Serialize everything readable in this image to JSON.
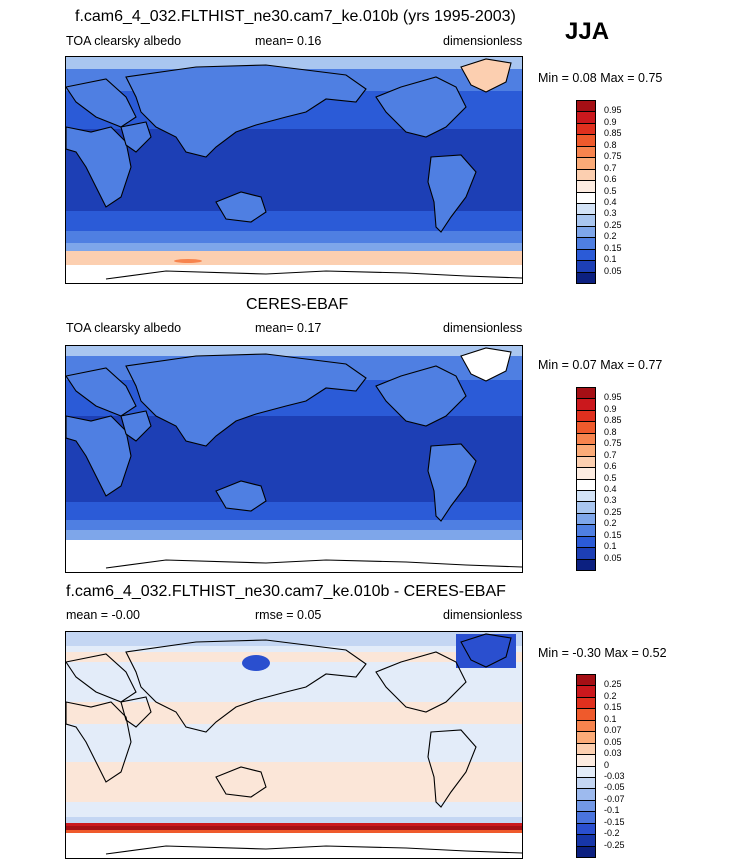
{
  "season": "JJA",
  "panels": [
    {
      "id": "model",
      "title": "f.cam6_4_032.FLTHIST_ne30.cam7_ke.010b (yrs 1995-2003)",
      "left_label": "TOA clearsky albedo",
      "mid_label": "mean=   0.16",
      "right_label": "dimensionless",
      "minmax": "Min =   0.08  Max =   0.75",
      "colorbar_labels": [
        "0.95",
        "0.9",
        "0.85",
        "0.8",
        "0.75",
        "0.7",
        "0.6",
        "0.5",
        "0.4",
        "0.3",
        "0.25",
        "0.2",
        "0.15",
        "0.1",
        "0.05"
      ],
      "colorbar_colors": [
        "#a50f15",
        "#cb181d",
        "#e0301e",
        "#ef5a2c",
        "#f7844e",
        "#fbab78",
        "#fccfb0",
        "#fdece1",
        "#ffffff",
        "#d3e3f7",
        "#a9c6f0",
        "#7ea6ea",
        "#4f7fe2",
        "#2b5bd7",
        "#1d3fb5",
        "#0c2080"
      ],
      "ocean_color": "#1e4fd0"
    },
    {
      "id": "obs",
      "title": "CERES-EBAF",
      "left_label": "TOA clearsky albedo",
      "mid_label": "mean=   0.17",
      "right_label": "dimensionless",
      "minmax": "Min =   0.07  Max =   0.77",
      "colorbar_labels": [
        "0.95",
        "0.9",
        "0.85",
        "0.8",
        "0.75",
        "0.7",
        "0.6",
        "0.5",
        "0.4",
        "0.3",
        "0.25",
        "0.2",
        "0.15",
        "0.1",
        "0.05"
      ],
      "colorbar_colors": [
        "#a50f15",
        "#cb181d",
        "#e0301e",
        "#ef5a2c",
        "#f7844e",
        "#fbab78",
        "#fccfb0",
        "#fdece1",
        "#ffffff",
        "#d3e3f7",
        "#a9c6f0",
        "#7ea6ea",
        "#4f7fe2",
        "#2b5bd7",
        "#1d3fb5",
        "#0c2080"
      ],
      "ocean_color": "#1e4fd0"
    },
    {
      "id": "diff",
      "title": "f.cam6_4_032.FLTHIST_ne30.cam7_ke.010b - CERES-EBAF",
      "left_label": "mean = -0.00",
      "mid_label": "rmse =  0.05",
      "right_label": "dimensionless",
      "minmax": "Min =  -0.30  Max =   0.52",
      "colorbar_labels": [
        "0.25",
        "0.2",
        "0.15",
        "0.1",
        "0.07",
        "0.05",
        "0.03",
        "0",
        "-0.03",
        "-0.05",
        "-0.07",
        "-0.1",
        "-0.15",
        "-0.2",
        "-0.25"
      ],
      "colorbar_colors": [
        "#a50f15",
        "#cb181d",
        "#e0301e",
        "#ef5a2c",
        "#f7844e",
        "#fbab78",
        "#fccfb0",
        "#fdece1",
        "#e3ecf9",
        "#c4d6f3",
        "#9dbaee",
        "#7298e6",
        "#4a74dd",
        "#2a4fcf",
        "#1736a8",
        "#0c2080"
      ],
      "ocean_color": "#fbe6d8"
    }
  ],
  "chart_data": [
    {
      "type": "heatmap",
      "title": "f.cam6_4_032.FLTHIST_ne30.cam7_ke.010b (yrs 1995-2003)",
      "variable": "TOA clearsky albedo",
      "units": "dimensionless",
      "mean": 0.16,
      "min": 0.08,
      "max": 0.75,
      "levels": [
        0.05,
        0.1,
        0.15,
        0.2,
        0.25,
        0.3,
        0.4,
        0.5,
        0.6,
        0.7,
        0.75,
        0.8,
        0.85,
        0.9,
        0.95
      ]
    },
    {
      "type": "heatmap",
      "title": "CERES-EBAF",
      "variable": "TOA clearsky albedo",
      "units": "dimensionless",
      "mean": 0.17,
      "min": 0.07,
      "max": 0.77,
      "levels": [
        0.05,
        0.1,
        0.15,
        0.2,
        0.25,
        0.3,
        0.4,
        0.5,
        0.6,
        0.7,
        0.75,
        0.8,
        0.85,
        0.9,
        0.95
      ]
    },
    {
      "type": "heatmap",
      "title": "f.cam6_4_032.FLTHIST_ne30.cam7_ke.010b - CERES-EBAF",
      "units": "dimensionless",
      "mean": -0.0,
      "rmse": 0.05,
      "min": -0.3,
      "max": 0.52,
      "levels": [
        -0.25,
        -0.2,
        -0.15,
        -0.1,
        -0.07,
        -0.05,
        -0.03,
        0,
        0.03,
        0.05,
        0.07,
        0.1,
        0.15,
        0.2,
        0.25
      ]
    }
  ]
}
